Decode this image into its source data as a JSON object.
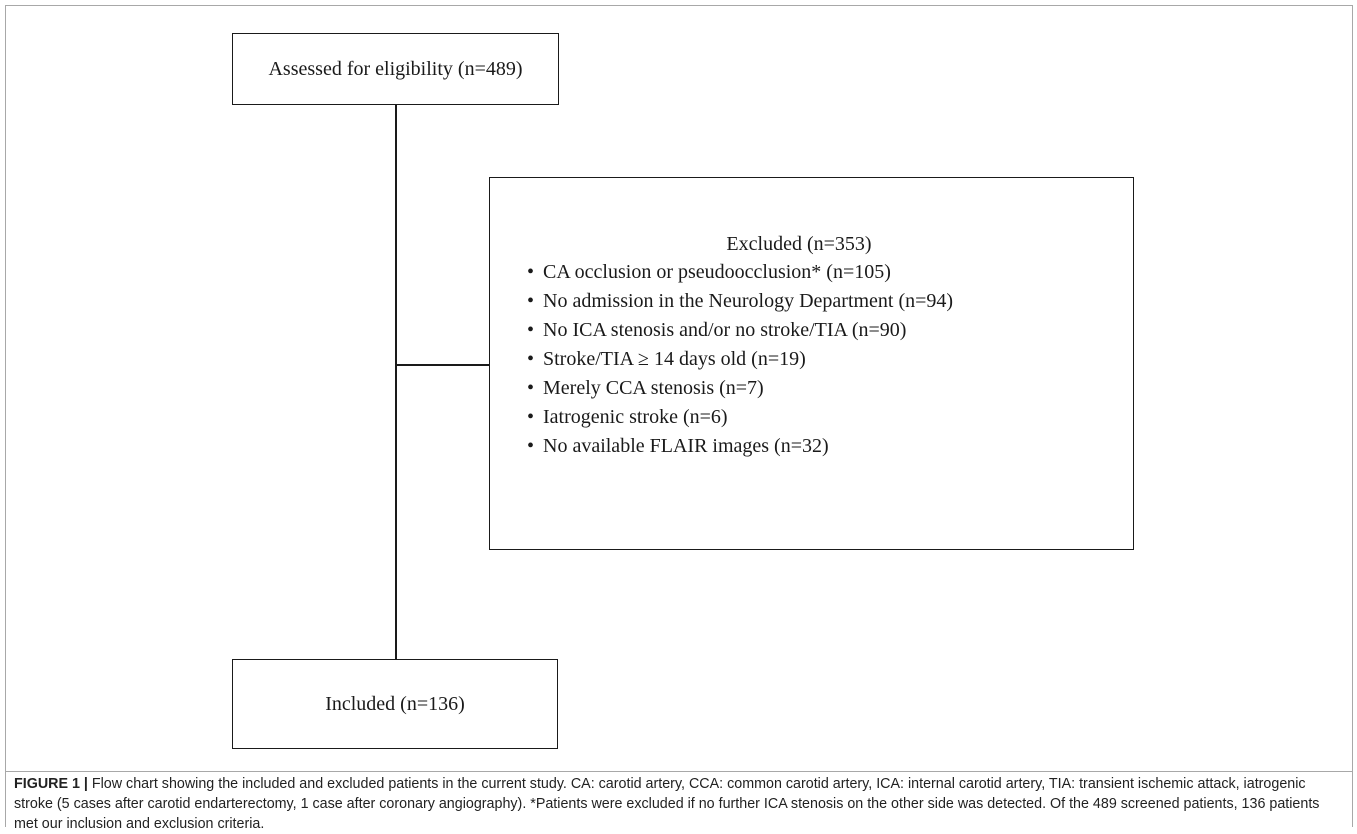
{
  "flowchart": {
    "assessed": "Assessed for eligibility (n=489)",
    "excluded": {
      "title": "Excluded (n=353)",
      "bullet": "•",
      "items": [
        "CA occlusion or pseudoocclusion* (n=105)",
        "No admission in the Neurology Department (n=94)",
        "No ICA stenosis and/or no stroke/TIA (n=90)",
        "Stroke/TIA ≥ 14 days old (n=19)",
        "Merely CCA stenosis (n=7)",
        "Iatrogenic stroke (n=6)",
        "No available FLAIR images (n=32)"
      ]
    },
    "included": "Included (n=136)"
  },
  "caption": {
    "label": "FIGURE 1 |",
    "text": " Flow chart showing the included and excluded patients in the current study. CA: carotid artery, CCA: common carotid artery, ICA: internal carotid artery, TIA: transient ischemic attack, iatrogenic stroke (5 cases after carotid endarterectomy, 1 case after coronary angiography). *Patients were excluded if no further ICA stenosis on the other side was detected. Of the 489 screened patients, 136 patients met our inclusion and exclusion criteria."
  },
  "colors": {
    "line": "#1a1a1a",
    "frame": "#a8a8a8",
    "caption_text": "#222222"
  }
}
